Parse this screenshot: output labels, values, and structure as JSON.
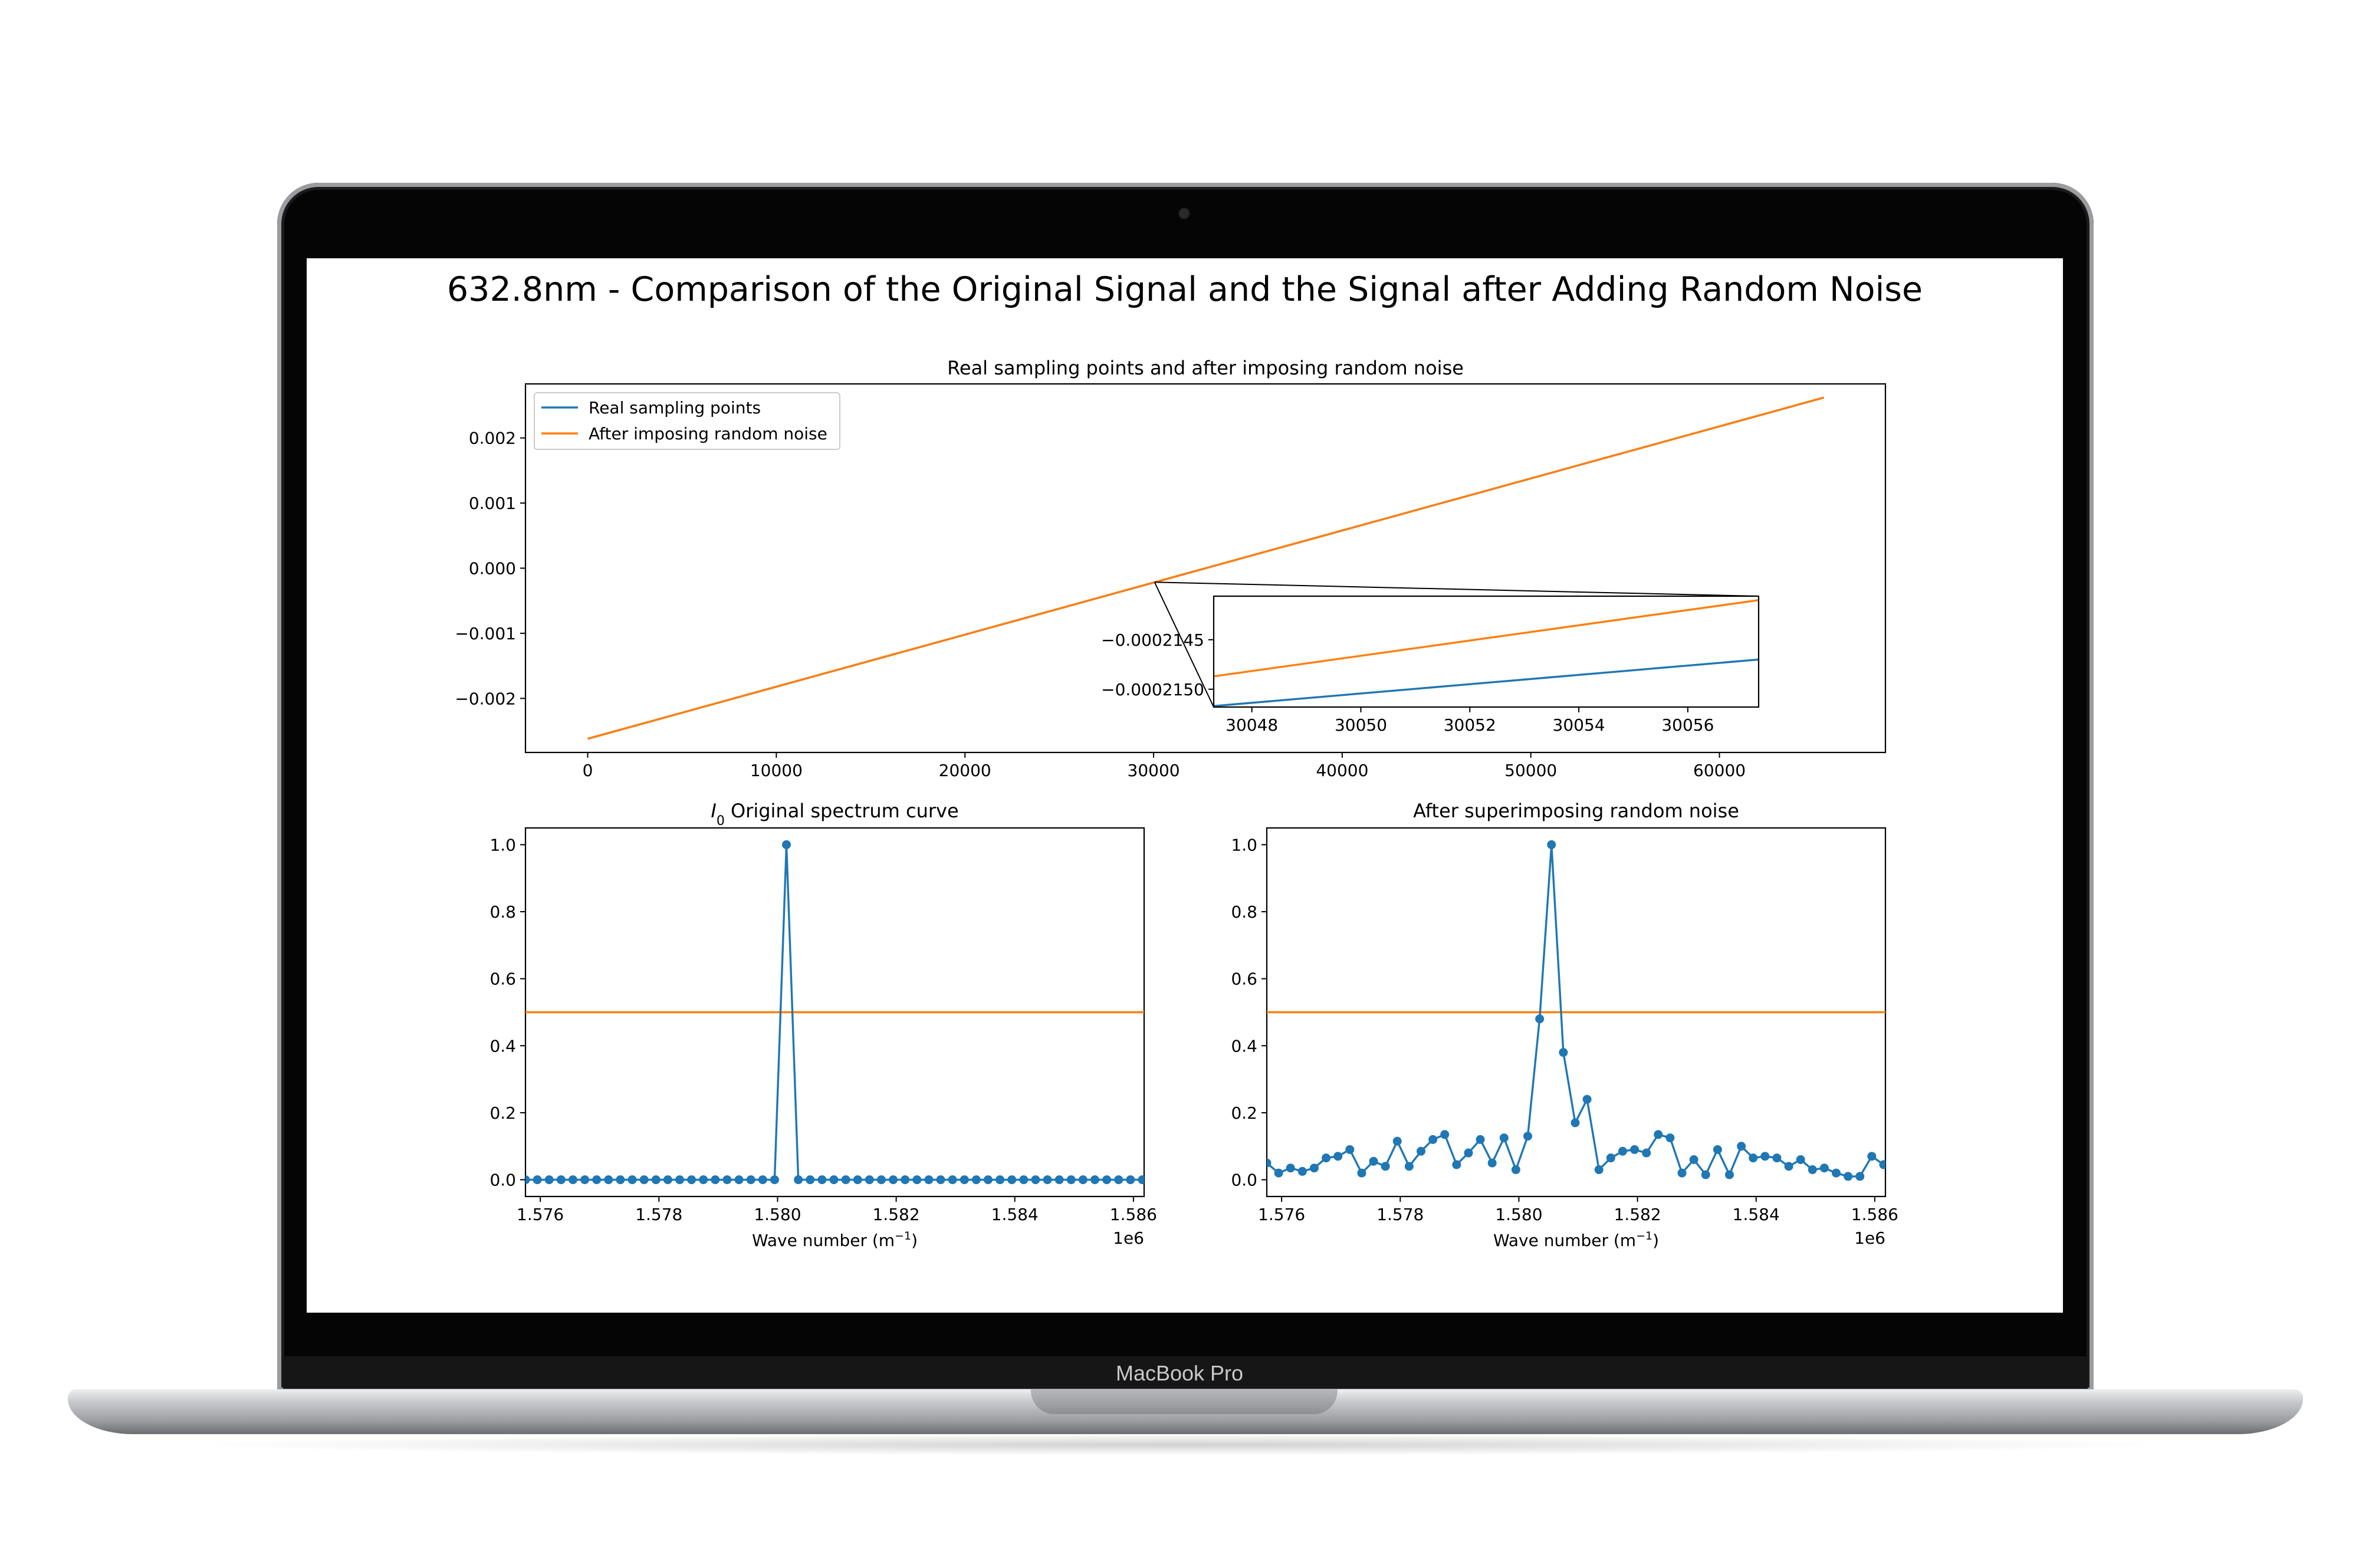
{
  "device": {
    "brand_label": "MacBook Pro"
  },
  "figure": {
    "suptitle": "632.8nm - Comparison of the Original Signal and the Signal after Adding Random Noise"
  },
  "chart_data": [
    {
      "type": "line",
      "title": "Real sampling points and after imposing random noise",
      "xlabel": "",
      "ylabel": "",
      "xlim": [
        -3300,
        68800
      ],
      "ylim": [
        -0.00283,
        0.00283
      ],
      "xticks": [
        0,
        10000,
        20000,
        30000,
        40000,
        50000,
        60000
      ],
      "xtick_labels": [
        "0",
        "10000",
        "20000",
        "30000",
        "40000",
        "50000",
        "60000"
      ],
      "yticks": [
        -0.002,
        -0.001,
        0.0,
        0.001,
        0.002
      ],
      "ytick_labels": [
        "−0.002",
        "−0.001",
        "0.000",
        "0.001",
        "0.002"
      ],
      "legend_position": "upper-left",
      "series": [
        {
          "name": "Real sampling points",
          "color": "#1f77b4",
          "x": [
            0,
            65535
          ],
          "y": [
            -0.00262,
            0.00262
          ]
        },
        {
          "name": "After imposing random noise",
          "color": "#ff7f0e",
          "x": [
            0,
            65535
          ],
          "y": [
            -0.00262,
            0.00262
          ]
        }
      ],
      "inset": {
        "xlim": [
          30047.3,
          30057.3
        ],
        "ylim": [
          -0.00021518,
          -0.00021406
        ],
        "xticks": [
          30048,
          30050,
          30052,
          30054,
          30056
        ],
        "xtick_labels": [
          "30048",
          "30050",
          "30052",
          "30054",
          "30056"
        ],
        "yticks": [
          -0.0002145,
          -0.000215
        ],
        "ytick_labels": [
          "−0.0002145",
          "−0.0002150"
        ],
        "series": [
          {
            "name": "Real sampling points",
            "color": "#1f77b4",
            "x": [
              30047.3,
              30057.3
            ],
            "y": [
              -0.00021517,
              -0.0002147
            ]
          },
          {
            "name": "After imposing random noise",
            "color": "#ff7f0e",
            "x": [
              30047.3,
              30057.3
            ],
            "y": [
              -0.00021487,
              -0.0002141
            ]
          }
        ]
      }
    },
    {
      "type": "line",
      "title_math": "I",
      "title_sub": "0",
      "title": " Original spectrum curve",
      "xlabel": "Wave number (m",
      "xlabel_sup": "−1",
      "xlabel_end": ")",
      "offset_text": "1e6",
      "xlim": [
        1.57575,
        1.58618
      ],
      "ylim": [
        -0.05,
        1.05
      ],
      "xticks": [
        1.576,
        1.578,
        1.58,
        1.582,
        1.584,
        1.586
      ],
      "xtick_labels": [
        "1.576",
        "1.578",
        "1.580",
        "1.582",
        "1.584",
        "1.586"
      ],
      "yticks": [
        0.0,
        0.2,
        0.4,
        0.6,
        0.8,
        1.0
      ],
      "ytick_labels": [
        "0.0",
        "0.2",
        "0.4",
        "0.6",
        "0.8",
        "1.0"
      ],
      "x_start": 1.57575,
      "x_step": 0.0002,
      "hline": {
        "y": 0.5,
        "color": "#ff7f0e"
      },
      "series": [
        {
          "color": "#1f77b4",
          "y": [
            0,
            0,
            0,
            0,
            0,
            0,
            0,
            0,
            0,
            0,
            0,
            0,
            0,
            0,
            0,
            0,
            0,
            0,
            0,
            0,
            0,
            0,
            1,
            0,
            0,
            0,
            0,
            0,
            0,
            0,
            0,
            0,
            0,
            0,
            0,
            0,
            0,
            0,
            0,
            0,
            0,
            0,
            0,
            0,
            0,
            0,
            0,
            0,
            0,
            0,
            0,
            0,
            0,
            0
          ]
        }
      ]
    },
    {
      "type": "line",
      "title": "After superimposing random noise",
      "xlabel": "Wave number (m",
      "xlabel_sup": "−1",
      "xlabel_end": ")",
      "offset_text": "1e6",
      "xlim": [
        1.57575,
        1.58618
      ],
      "ylim": [
        -0.05,
        1.05
      ],
      "xticks": [
        1.576,
        1.578,
        1.58,
        1.582,
        1.584,
        1.586
      ],
      "xtick_labels": [
        "1.576",
        "1.578",
        "1.580",
        "1.582",
        "1.584",
        "1.586"
      ],
      "yticks": [
        0.0,
        0.2,
        0.4,
        0.6,
        0.8,
        1.0
      ],
      "ytick_labels": [
        "0.0",
        "0.2",
        "0.4",
        "0.6",
        "0.8",
        "1.0"
      ],
      "x_start": 1.57575,
      "x_step": 0.0002,
      "hline": {
        "y": 0.5,
        "color": "#ff7f0e"
      },
      "series": [
        {
          "color": "#1f77b4",
          "y": [
            0.05,
            0.02,
            0.035,
            0.025,
            0.035,
            0.065,
            0.07,
            0.09,
            0.02,
            0.055,
            0.04,
            0.115,
            0.04,
            0.085,
            0.12,
            0.135,
            0.045,
            0.08,
            0.12,
            0.05,
            0.125,
            0.03,
            0.13,
            0.48,
            1.0,
            0.38,
            0.17,
            0.24,
            0.03,
            0.065,
            0.085,
            0.09,
            0.08,
            0.135,
            0.125,
            0.02,
            0.06,
            0.015,
            0.09,
            0.015,
            0.1,
            0.065,
            0.07,
            0.065,
            0.04,
            0.06,
            0.03,
            0.035,
            0.02,
            0.01,
            0.01,
            0.07,
            0.045,
            0.025
          ]
        }
      ]
    }
  ]
}
